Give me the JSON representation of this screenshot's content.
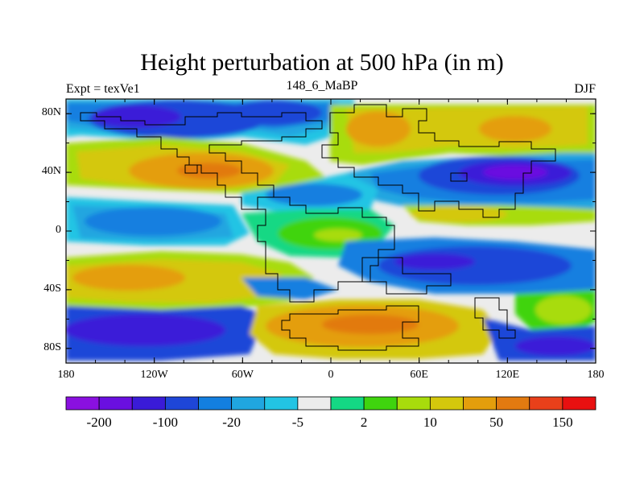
{
  "chart_data": {
    "type": "heatmap",
    "title": "Height perturbation at 500 hPa (in m)",
    "left_label": "Expt = texVe1",
    "center_label": "148_6_MaBP",
    "right_label": "DJF",
    "x_ticks": [
      "180",
      "120W",
      "60W",
      "0",
      "60E",
      "120E",
      "180"
    ],
    "y_ticks": [
      "80N",
      "40N",
      "0",
      "40S",
      "80S"
    ],
    "colorbar_labels": [
      "-200",
      "-100",
      "-20",
      "-5",
      "2",
      "10",
      "50",
      "150"
    ],
    "colorbar_colors": [
      "#8a10e0",
      "#6a0fe0",
      "#3a1bd8",
      "#1e46d8",
      "#137fe0",
      "#20a6e0",
      "#22c4e4",
      "#ececec",
      "#14d884",
      "#3fd40e",
      "#a8dc0c",
      "#d4c80c",
      "#e49e0c",
      "#e27a10",
      "#e8401a",
      "#e81010"
    ],
    "x_range": [
      -180,
      180
    ],
    "y_range": [
      -90,
      90
    ],
    "description_levels": [
      -200,
      -100,
      -20,
      -5,
      2,
      10,
      50,
      150
    ]
  }
}
